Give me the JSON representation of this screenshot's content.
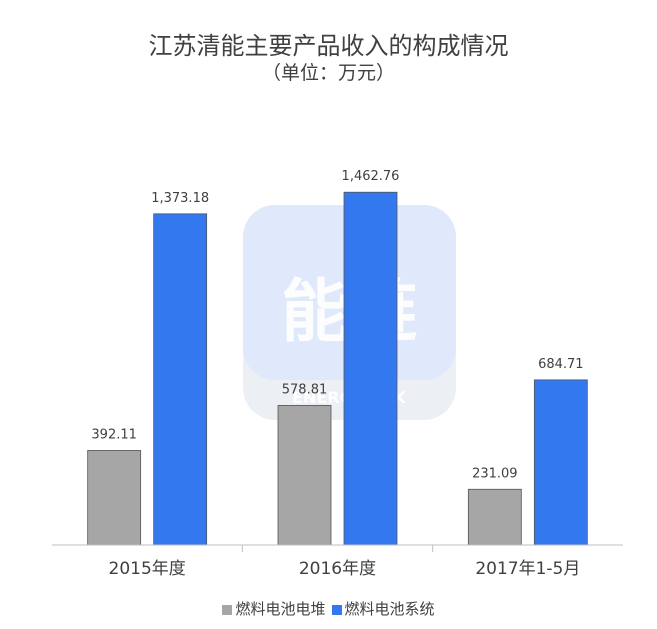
{
  "chart_data": {
    "type": "bar",
    "title": "江苏清能主要产品收入的构成情况",
    "subtitle": "（单位：万元）",
    "categories": [
      "2015年度",
      "2016年度",
      "2017年1-5月"
    ],
    "series": [
      {
        "name": "燃料电池电堆",
        "values": [
          392.11,
          578.81,
          231.09
        ],
        "labels": [
          "392.11",
          "578.81",
          "231.09"
        ],
        "color": "#a6a6a6"
      },
      {
        "name": "燃料电池系统",
        "values": [
          1373.18,
          1462.76,
          684.71
        ],
        "labels": [
          "1,373.18",
          "1,462.76",
          "684.71"
        ],
        "color": "#3478f0"
      }
    ],
    "ylim": [
      0,
      1700
    ],
    "grid": false,
    "legend_position": "bottom"
  },
  "watermark": {
    "logo_text": "能链",
    "sub_text": "ENERGYLINK"
  }
}
